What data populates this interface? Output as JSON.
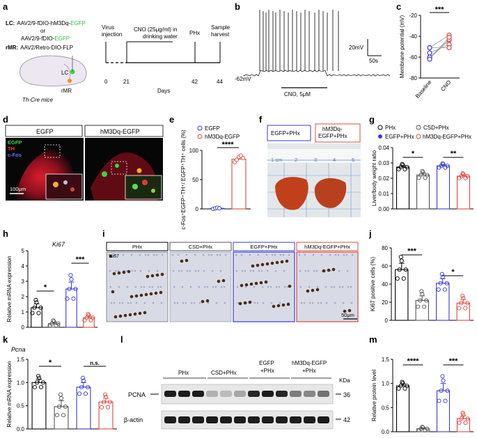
{
  "panel_letters": [
    "a",
    "b",
    "c",
    "d",
    "e",
    "f",
    "g",
    "h",
    "i",
    "j",
    "k",
    "l",
    "m"
  ],
  "colors": {
    "egfp_blue": "#3a3ad6",
    "hm3dq_red": "#e0483e",
    "black": "#000000",
    "gray": "#555555",
    "bar_fill_red": "#f2c8c3"
  },
  "panel_a": {
    "lc_label": "LC:",
    "lc_vector_prefix": "AAV2/9-fDIO-hM3Dq-",
    "lc_vector_egfp": "EGFP",
    "or": "or",
    "alt_vector_prefix": "AAV2/9-fDIO-",
    "alt_vector_egfp": "EGFP",
    "rmr_label": "rMR:",
    "rmr_vector": "AAV2/Retro-DIO-FLP",
    "brain_lc": "LC",
    "brain_rmr": "rMR",
    "mouse": "Th-Cre mice",
    "virus_injection": "Virus injection",
    "cno_label": "CNO (25μg/ml) in drinking water",
    "phx": "PHx",
    "harvest": "Sample harvest",
    "ticks": [
      "0",
      "21",
      "42",
      "44"
    ],
    "days": "Days"
  },
  "panel_b": {
    "scale_mv": "20mV",
    "scale_s": "50s",
    "baseline": "-62mV",
    "cno": "CNO, 5μM"
  },
  "panel_c": {
    "ylabel": "Membrane potential (mV)",
    "yticks": [
      "-20",
      "-40",
      "-60",
      "-80"
    ],
    "xcats": [
      "Baseline",
      "CNO"
    ],
    "sig": "***"
  },
  "panel_d": {
    "col1": "EGFP",
    "col2": "hM3Dq-EGFP",
    "ch1": "EGFP",
    "ch2": "TH",
    "ch3": "c-Fos",
    "scale": "100μm"
  },
  "panel_e": {
    "ylabel": "c-Fos⁺EGFP⁺TH⁺/ EGFP⁺TH⁺ cells (%)",
    "yticks": [
      "100",
      "50",
      "0"
    ],
    "legend": [
      "EGFP",
      "hM3Dq-EGFP"
    ],
    "sig": "****"
  },
  "panel_f": {
    "label1": "EGFP+PHx",
    "label2": "hM3Dq- EGFP+PHx",
    "ruler": [
      "1 cm",
      "2",
      "3",
      "4",
      "5"
    ]
  },
  "panel_g": {
    "legend": [
      "PHx",
      "CSD+PHx",
      "EGFP+PHx",
      "hM3Dq-EGFP+PHx"
    ],
    "ylabel": "Liver/body weight ratio",
    "yticks": [
      "0.04",
      "0.03",
      "0.02",
      "0.01",
      "0.00"
    ],
    "sig1": "*",
    "sig2": "**"
  },
  "panel_h": {
    "gene": "Ki67",
    "ylabel": "Relative mRNA expression",
    "yticks": [
      "5",
      "4",
      "3",
      "2",
      "1",
      "0"
    ],
    "sig1": "*",
    "sig2": "***"
  },
  "panel_i": {
    "labels": [
      "PHx",
      "CSD+PHx",
      "EGFP+PHx",
      "hM3Dq-EGFP+PHx"
    ],
    "marker": "Ki67",
    "scale": "50μm"
  },
  "panel_j": {
    "ylabel": "Ki67 positive cells (%)",
    "yticks": [
      "80",
      "60",
      "40",
      "20",
      "0"
    ],
    "sig1": "***",
    "sig2": "*"
  },
  "panel_k": {
    "gene": "Pcna",
    "ylabel": "Relative mRNA expression",
    "yticks": [
      "1.5",
      "1.0",
      "0.5",
      "0.0"
    ],
    "sig1": "*",
    "sig2": "n.s."
  },
  "panel_l": {
    "groups": [
      "PHx",
      "CSD+PHx",
      "EGFP +PHx",
      "hM3Dq-EGFP +PHx"
    ],
    "kda": "KDa",
    "rows": [
      "PCNA",
      "β-actin"
    ],
    "sizes": [
      "36",
      "42"
    ]
  },
  "panel_m": {
    "ylabel": "Relative protein level",
    "yticks": [
      "1.5",
      "1.0",
      "0.5",
      "0.0"
    ],
    "sig1": "****",
    "sig2": "***"
  },
  "chart_data": [
    {
      "panel": "c",
      "type": "scatter",
      "categories": [
        "Baseline",
        "CNO"
      ],
      "ylabel": "Membrane potential (mV)",
      "ylim": [
        -80,
        -20
      ],
      "series": [
        {
          "values": [
            -51,
            -61,
            -60,
            -62,
            -56,
            -51
          ],
          "values_cno": [
            -39,
            -44,
            -43,
            -41,
            -48,
            -51
          ]
        }
      ]
    },
    {
      "panel": "e",
      "type": "bar",
      "categories": [
        "EGFP",
        "hM3Dq-EGFP"
      ],
      "values": [
        1,
        85
      ],
      "points": [
        [
          0,
          1,
          2,
          1
        ],
        [
          80,
          84,
          89,
          91,
          87
        ]
      ],
      "ylim": [
        0,
        100
      ]
    },
    {
      "panel": "g",
      "type": "bar",
      "categories": [
        "PHx",
        "CSD+PHx",
        "EGFP+PHx",
        "hM3Dq-EGFP+PHx"
      ],
      "values": [
        0.0273,
        0.0221,
        0.0281,
        0.0214
      ],
      "errors": [
        0.001,
        0.0013,
        0.0008,
        0.0009
      ],
      "ylim": [
        0,
        0.04
      ]
    },
    {
      "panel": "h",
      "type": "bar",
      "categories": [
        "PHx",
        "CSD+PHx",
        "EGFP+PHx",
        "hM3Dq-EGFP+PHx"
      ],
      "values": [
        1.28,
        0.24,
        2.5,
        0.62
      ],
      "errors": [
        0.25,
        0.1,
        0.45,
        0.12
      ],
      "ylim": [
        0,
        5
      ]
    },
    {
      "panel": "j",
      "type": "bar",
      "categories": [
        "PHx",
        "CSD+PHx",
        "EGFP+PHx",
        "hM3Dq-EGFP+PHx"
      ],
      "values": [
        56,
        22,
        41,
        19
      ],
      "errors": [
        7,
        5,
        5,
        4
      ],
      "ylim": [
        0,
        80
      ]
    },
    {
      "panel": "k",
      "type": "bar",
      "categories": [
        "PHx",
        "CSD+PHx",
        "EGFP+PHx",
        "hM3Dq-EGFP+PHx"
      ],
      "values": [
        1.0,
        0.48,
        0.9,
        0.58
      ],
      "errors": [
        0.07,
        0.13,
        0.1,
        0.08
      ],
      "ylim": [
        0,
        1.5
      ]
    },
    {
      "panel": "m",
      "type": "bar",
      "categories": [
        "PHx",
        "CSD+PHx",
        "EGFP+PHx",
        "hM3Dq-EGFP+PHx"
      ],
      "values": [
        0.95,
        0.06,
        0.85,
        0.27
      ],
      "errors": [
        0.04,
        0.02,
        0.15,
        0.06
      ],
      "ylim": [
        0,
        1.5
      ]
    }
  ]
}
